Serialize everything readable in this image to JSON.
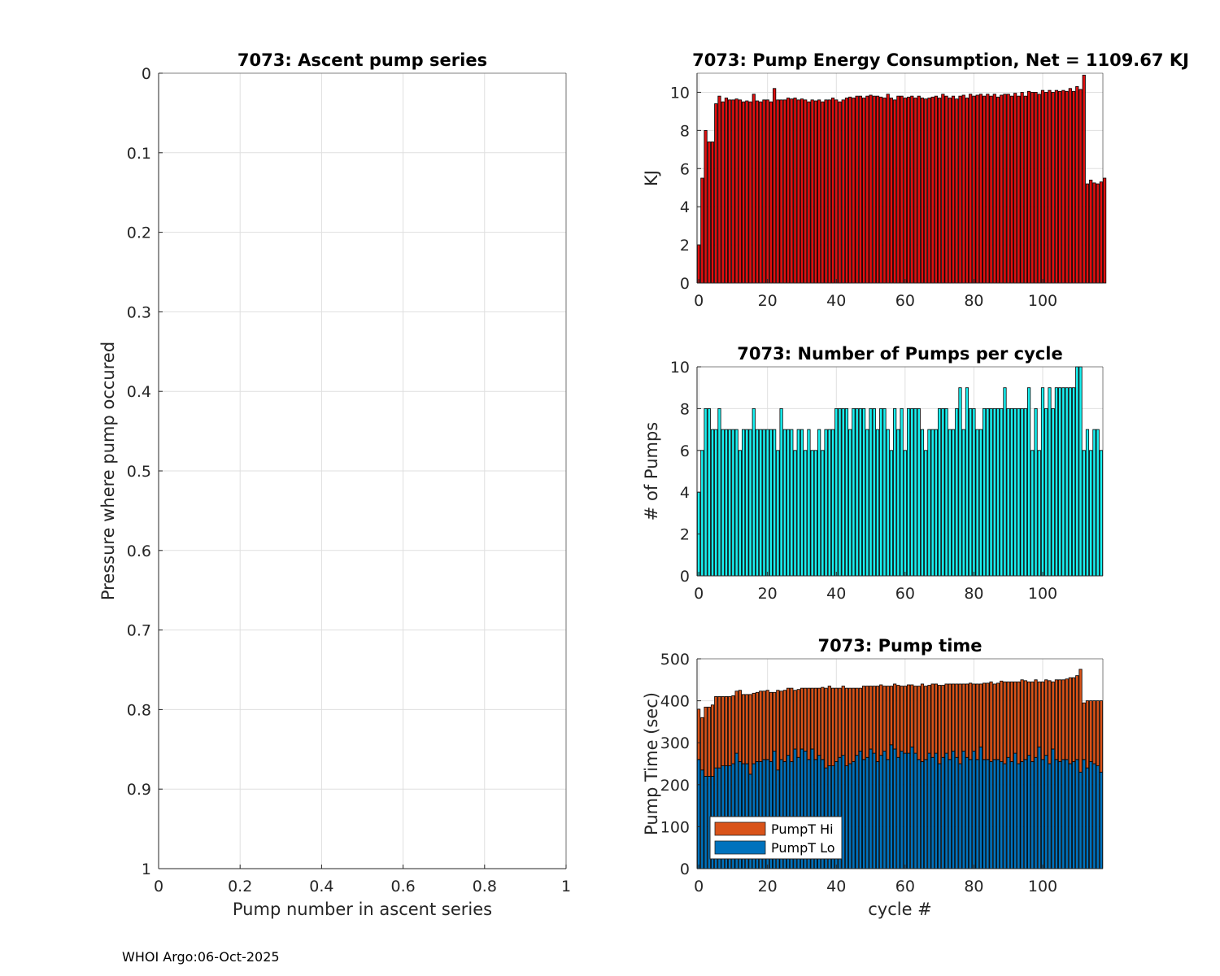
{
  "footer": "WHOI Argo:06-Oct-2025",
  "chart_data": [
    {
      "type": "line",
      "title": "7073: Ascent pump series",
      "xlabel": "Pump number in ascent series",
      "ylabel": "Pressure where pump occured",
      "xlim": [
        0,
        1
      ],
      "ylim": [
        0,
        1
      ],
      "y_reversed": true,
      "grid": true,
      "xticks": [
        "0",
        "0.2",
        "0.4",
        "0.6",
        "0.8",
        "1"
      ],
      "yticks": [
        "0",
        "0.1",
        "0.2",
        "0.3",
        "0.4",
        "0.5",
        "0.6",
        "0.7",
        "0.8",
        "0.9",
        "1"
      ],
      "series": []
    },
    {
      "type": "bar",
      "title": "7073: Pump Energy Consumption,  Net = 1109.67 KJ",
      "xlabel": "",
      "ylabel": "KJ",
      "xlim": [
        -0.5,
        117.5
      ],
      "ylim": [
        0,
        11
      ],
      "grid": true,
      "color": "#e01010",
      "xticks": [
        "0",
        "20",
        "40",
        "60",
        "80",
        "100"
      ],
      "yticks": [
        "0",
        "2",
        "4",
        "6",
        "8",
        "10"
      ],
      "values": [
        2.0,
        5.5,
        8.0,
        7.4,
        7.4,
        9.4,
        9.8,
        9.5,
        9.7,
        9.6,
        9.6,
        9.65,
        9.6,
        9.5,
        9.55,
        9.5,
        9.9,
        9.55,
        9.5,
        9.6,
        9.6,
        9.5,
        10.2,
        9.6,
        9.6,
        9.6,
        9.7,
        9.65,
        9.7,
        9.6,
        9.65,
        9.6,
        9.5,
        9.6,
        9.55,
        9.6,
        9.5,
        9.6,
        9.6,
        9.7,
        9.6,
        9.5,
        9.6,
        9.7,
        9.75,
        9.7,
        9.8,
        9.8,
        9.7,
        9.8,
        9.85,
        9.8,
        9.8,
        9.75,
        9.7,
        9.9,
        9.7,
        9.6,
        9.8,
        9.8,
        9.7,
        9.75,
        9.8,
        9.7,
        9.8,
        9.7,
        9.65,
        9.7,
        9.75,
        9.8,
        9.7,
        9.9,
        9.8,
        9.7,
        9.8,
        9.65,
        9.8,
        9.85,
        9.7,
        9.9,
        9.8,
        9.85,
        9.9,
        9.8,
        9.9,
        9.8,
        9.9,
        9.75,
        9.85,
        9.9,
        9.9,
        9.8,
        9.95,
        9.8,
        10.0,
        9.8,
        10.05,
        10.0,
        10.0,
        9.9,
        10.1,
        10.0,
        10.1,
        10.0,
        10.1,
        10.05,
        10.1,
        10.05,
        10.2,
        10.05,
        10.3,
        10.15,
        10.9,
        5.2,
        5.4,
        5.25,
        5.2,
        5.3,
        5.5
      ]
    },
    {
      "type": "bar",
      "title": "7073: Number of Pumps per cycle",
      "xlabel": "",
      "ylabel": "# of Pumps",
      "xlim": [
        -0.5,
        117.5
      ],
      "ylim": [
        0,
        10
      ],
      "grid": true,
      "color": "#19f0f0",
      "xticks": [
        "0",
        "20",
        "40",
        "60",
        "80",
        "100"
      ],
      "yticks": [
        "0",
        "2",
        "4",
        "6",
        "8",
        "10"
      ],
      "values": [
        4,
        6,
        8,
        8,
        7,
        7,
        8,
        7,
        7,
        7,
        7,
        7,
        6,
        7,
        7,
        7,
        8,
        7,
        7,
        7,
        7,
        7,
        7,
        6,
        8,
        7,
        7,
        7,
        6,
        7,
        7,
        6,
        7,
        6,
        6,
        7,
        6,
        7,
        7,
        7,
        8,
        8,
        8,
        8,
        7,
        8,
        8,
        8,
        8,
        7,
        8,
        8,
        7,
        8,
        8,
        7,
        6,
        8,
        7,
        8,
        6,
        8,
        8,
        8,
        8,
        7,
        6,
        7,
        7,
        7,
        8,
        8,
        8,
        7,
        7,
        8,
        9,
        7,
        9,
        8,
        8,
        7,
        7,
        8,
        8,
        8,
        8,
        8,
        8,
        9,
        8,
        8,
        8,
        8,
        8,
        8,
        9,
        6,
        8,
        6,
        9,
        8,
        9,
        8,
        9,
        9,
        9,
        9,
        9,
        9,
        10,
        10,
        6,
        7,
        6,
        7,
        7,
        6
      ]
    },
    {
      "type": "bar",
      "stacked": true,
      "title": "7073: Pump time",
      "xlabel": "cycle #",
      "ylabel": "Pump Time (sec)",
      "xlim": [
        -0.5,
        117.5
      ],
      "ylim": [
        0,
        500
      ],
      "grid": true,
      "xticks": [
        "0",
        "20",
        "40",
        "60",
        "80",
        "100"
      ],
      "yticks": [
        "0",
        "100",
        "200",
        "300",
        "400",
        "500"
      ],
      "legend": "bottom-left",
      "series": [
        {
          "name": "PumpT Lo",
          "color": "#0072bd",
          "values": [
            260,
            235,
            220,
            220,
            220,
            240,
            240,
            245,
            245,
            245,
            250,
            275,
            255,
            250,
            250,
            225,
            250,
            255,
            255,
            260,
            260,
            255,
            280,
            235,
            260,
            255,
            270,
            255,
            285,
            265,
            285,
            280,
            260,
            285,
            260,
            270,
            260,
            240,
            245,
            245,
            255,
            265,
            270,
            245,
            250,
            255,
            270,
            280,
            260,
            265,
            285,
            275,
            255,
            270,
            280,
            260,
            295,
            285,
            265,
            280,
            275,
            275,
            290,
            275,
            260,
            255,
            260,
            275,
            265,
            275,
            250,
            265,
            275,
            260,
            280,
            265,
            250,
            280,
            265,
            260,
            280,
            260,
            290,
            260,
            260,
            255,
            260,
            260,
            255,
            250,
            265,
            255,
            275,
            250,
            255,
            260,
            270,
            255,
            265,
            290,
            260,
            270,
            250,
            285,
            260,
            255,
            260,
            260,
            250,
            255,
            260,
            230,
            260,
            240,
            255,
            250,
            245,
            230
          ]
        },
        {
          "name": "PumpT Hi",
          "color": "#d95319",
          "values": [
            120,
            125,
            165,
            165,
            170,
            170,
            170,
            165,
            165,
            165,
            162,
            148,
            170,
            165,
            165,
            190,
            168,
            165,
            168,
            163,
            165,
            165,
            140,
            190,
            163,
            170,
            160,
            175,
            140,
            162,
            145,
            150,
            170,
            145,
            170,
            160,
            172,
            190,
            190,
            185,
            175,
            165,
            165,
            185,
            180,
            175,
            160,
            150,
            175,
            170,
            150,
            160,
            180,
            168,
            155,
            175,
            140,
            155,
            172,
            155,
            160,
            163,
            148,
            160,
            175,
            185,
            175,
            162,
            175,
            165,
            187,
            172,
            165,
            180,
            160,
            175,
            190,
            160,
            175,
            182,
            160,
            180,
            150,
            182,
            182,
            190,
            180,
            182,
            192,
            195,
            180,
            190,
            170,
            195,
            195,
            188,
            175,
            190,
            185,
            155,
            185,
            180,
            198,
            160,
            190,
            195,
            190,
            192,
            205,
            200,
            200,
            245,
            135,
            160,
            145,
            150,
            155,
            170
          ]
        }
      ]
    }
  ]
}
